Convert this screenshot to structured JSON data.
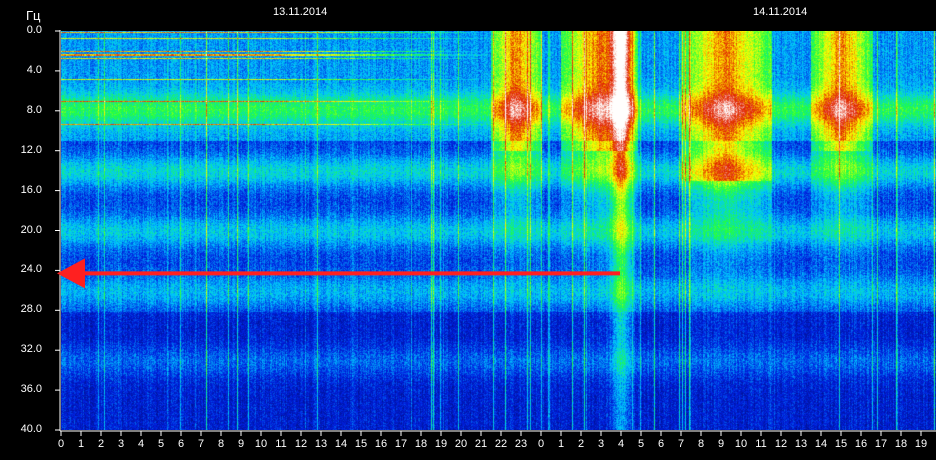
{
  "chart_data": {
    "type": "heatmap",
    "title": "",
    "ylabel": "Гц",
    "xlabel": "",
    "ylim": [
      0,
      40
    ],
    "y_inverted": true,
    "y_ticks": [
      "0.0",
      "4.0",
      "8.0",
      "12.0",
      "16.0",
      "20.0",
      "24.0",
      "28.0",
      "32.0",
      "36.0",
      "40.0"
    ],
    "x_ticks": [
      "0",
      "1",
      "2",
      "3",
      "4",
      "5",
      "6",
      "7",
      "8",
      "9",
      "10",
      "11",
      "12",
      "13",
      "14",
      "15",
      "16",
      "17",
      "18",
      "19",
      "20",
      "21",
      "22",
      "23",
      "0",
      "1",
      "2",
      "3",
      "4",
      "5",
      "6",
      "7",
      "8",
      "9",
      "10",
      "11",
      "12",
      "13",
      "14",
      "15",
      "16",
      "17",
      "18",
      "19"
    ],
    "x_unit": "hour",
    "date_labels": [
      {
        "text": "13.11.2014",
        "hour_index": 12
      },
      {
        "text": "14.11.2014",
        "hour_index": 36
      }
    ],
    "colormap": [
      "#000a6e",
      "#0020e0",
      "#00c8ff",
      "#20ff40",
      "#ffff00",
      "#e02000",
      "#ffffff"
    ],
    "resonance_bands_hz": [
      7.8,
      14,
      20,
      26,
      33
    ],
    "high_activity_periods": [
      {
        "start_hour_index": 21.5,
        "end_hour_index": 24,
        "max_hz": 12
      },
      {
        "start_hour_index": 25,
        "end_hour_index": 28.8,
        "max_hz": 12
      },
      {
        "start_hour_index": 31,
        "end_hour_index": 35.5,
        "max_hz": 15
      },
      {
        "start_hour_index": 37.5,
        "end_hour_index": 40.5,
        "max_hz": 12
      }
    ],
    "annotation": {
      "type": "arrow",
      "color": "#ff2020",
      "direction": "left",
      "y_value": 24.3,
      "from_hour_index": 28,
      "to_hour_index": 0
    }
  }
}
